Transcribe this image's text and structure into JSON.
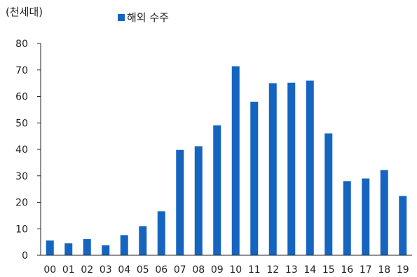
{
  "chart_data": {
    "type": "bar",
    "unit_label": "(천세대)",
    "categories": [
      "00",
      "01",
      "02",
      "03",
      "04",
      "05",
      "06",
      "07",
      "08",
      "09",
      "10",
      "11",
      "12",
      "13",
      "14",
      "15",
      "16",
      "17",
      "18",
      "19"
    ],
    "series": [
      {
        "name": "해외 수주",
        "color": "#1565c0",
        "values": [
          5.6,
          4.5,
          6.1,
          3.8,
          7.6,
          11.0,
          16.6,
          39.8,
          41.2,
          49.1,
          71.4,
          58.0,
          65.0,
          65.2,
          66.0,
          46.0,
          28.0,
          29.0,
          32.2,
          22.4
        ]
      }
    ],
    "ylim": [
      0,
      80
    ],
    "yticks": [
      0,
      10,
      20,
      30,
      40,
      50,
      60,
      70,
      80
    ],
    "ytick_labels": [
      "0",
      "10",
      "20",
      "30",
      "40",
      "50",
      "60",
      "70",
      "80"
    ],
    "grid": false,
    "legend_position": "top-center"
  }
}
